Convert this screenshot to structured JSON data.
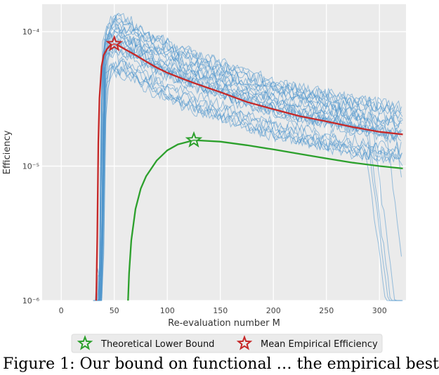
{
  "chart_data": {
    "type": "line",
    "xlabel": "Re-evaluation number M",
    "ylabel": "Efficiency",
    "xlim": [
      -18,
      325
    ],
    "ylim": [
      1e-06,
      0.00016
    ],
    "yscale": "log",
    "grid": true,
    "x_ticks": [
      0,
      50,
      100,
      150,
      200,
      250,
      300
    ],
    "x_tick_labels": [
      "0",
      "50",
      "100",
      "150",
      "200",
      "250",
      "300"
    ],
    "y_ticks": [
      1e-06,
      1e-05,
      0.0001
    ],
    "y_tick_labels": [
      "10⁻⁶",
      "10⁻⁵",
      "10⁻⁴"
    ],
    "legend_position": "below",
    "series": [
      {
        "name": "Theoretical Lower Bound",
        "color": "#2ca02c",
        "x": [
          63,
          64,
          66,
          70,
          75,
          80,
          90,
          100,
          110,
          125,
          150,
          175,
          200,
          225,
          250,
          275,
          300,
          322
        ],
        "y": [
          1e-06,
          1.6e-06,
          2.8e-06,
          4.8e-06,
          6.8e-06,
          8.4e-06,
          1.1e-05,
          1.31e-05,
          1.45e-05,
          1.56e-05,
          1.52e-05,
          1.43e-05,
          1.33e-05,
          1.23e-05,
          1.14e-05,
          1.06e-05,
          1e-05,
          9.6e-06
        ],
        "marker": {
          "x": 125,
          "y": 1.56e-05,
          "symbol": "star"
        }
      },
      {
        "name": "Mean Empirical Efficiency",
        "color": "#c62828",
        "x": [
          33,
          34,
          35,
          36,
          38,
          40,
          43,
          46,
          50,
          55,
          60,
          70,
          80,
          90,
          100,
          110,
          125,
          150,
          175,
          200,
          225,
          250,
          275,
          300,
          322
        ],
        "y": [
          1e-06,
          3e-06,
          1.5e-05,
          3.2e-05,
          5.5e-05,
          6.7e-05,
          7.4e-05,
          7.9e-05,
          8.1e-05,
          7.8e-05,
          7.4e-05,
          6.7e-05,
          6e-05,
          5.4e-05,
          4.95e-05,
          4.6e-05,
          4.15e-05,
          3.55e-05,
          3e-05,
          2.65e-05,
          2.35e-05,
          2.15e-05,
          1.95e-05,
          1.8e-05,
          1.72e-05
        ],
        "marker": {
          "x": 50,
          "y": 8.1e-05,
          "symbol": "star"
        }
      }
    ],
    "run_traces": {
      "color": "#4a93cc",
      "count": 26
    }
  },
  "legend": {
    "items": [
      {
        "label": "Theoretical Lower Bound",
        "color": "#2ca02c"
      },
      {
        "label": "Mean Empirical Efficiency",
        "color": "#c62828"
      }
    ]
  },
  "caption": "Figure 1: Our bound on functional … the empirical best"
}
